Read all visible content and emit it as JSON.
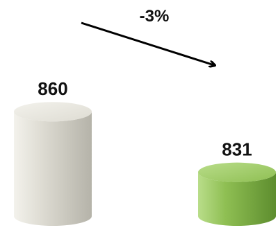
{
  "chart_data": {
    "type": "bar",
    "categories": [
      "",
      ""
    ],
    "values": [
      860,
      831
    ],
    "labels": [
      "860",
      "831"
    ],
    "annotation": "-3%",
    "colors": {
      "bar1_light": "#f3f2ec",
      "bar1_mid": "#dedcd3",
      "bar1_dark": "#b5b3a9",
      "bar2_light": "#b9dd8a",
      "bar2_mid": "#8fbf53",
      "bar2_dark": "#5d8d2e",
      "arrow": "#000000"
    },
    "ylim": [
      810,
      875
    ]
  }
}
